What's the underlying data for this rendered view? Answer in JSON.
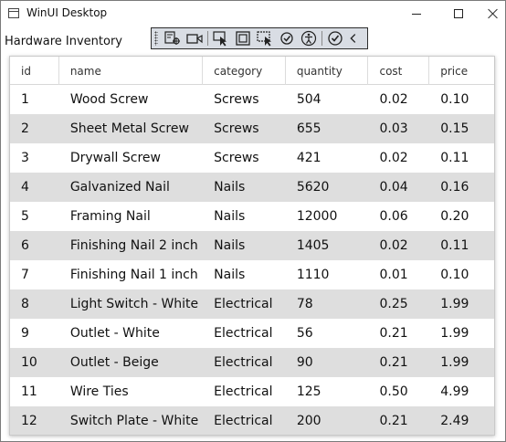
{
  "window": {
    "title": "WinUI Desktop"
  },
  "page": {
    "title": "Hardware Inventory"
  },
  "toolbar": {
    "tools": [
      "live-visual-tree-icon",
      "record-icon",
      "select-element-icon",
      "display-layout-adorners-icon",
      "track-focus-icon",
      "hot-reload-icon",
      "accessibility-icon",
      "check-icon",
      "collapse-icon"
    ]
  },
  "table": {
    "columns": [
      "id",
      "name",
      "category",
      "quantity",
      "cost",
      "price"
    ],
    "rows": [
      [
        "1",
        "Wood Screw",
        "Screws",
        "504",
        "0.02",
        "0.10"
      ],
      [
        "2",
        "Sheet Metal Screw",
        "Screws",
        "655",
        "0.03",
        "0.15"
      ],
      [
        "3",
        "Drywall Screw",
        "Screws",
        "421",
        "0.02",
        "0.11"
      ],
      [
        "4",
        "Galvanized Nail",
        "Nails",
        "5620",
        "0.04",
        "0.16"
      ],
      [
        "5",
        "Framing Nail",
        "Nails",
        "12000",
        "0.06",
        "0.20"
      ],
      [
        "6",
        "Finishing Nail 2 inch",
        "Nails",
        "1405",
        "0.02",
        "0.11"
      ],
      [
        "7",
        "Finishing Nail 1 inch",
        "Nails",
        "1110",
        "0.01",
        "0.10"
      ],
      [
        "8",
        "Light Switch - White",
        "Electrical",
        "78",
        "0.25",
        "1.99"
      ],
      [
        "9",
        "Outlet - White",
        "Electrical",
        "56",
        "0.21",
        "1.99"
      ],
      [
        "10",
        "Outlet - Beige",
        "Electrical",
        "90",
        "0.21",
        "1.99"
      ],
      [
        "11",
        "Wire Ties",
        "Electrical",
        "125",
        "0.50",
        "4.99"
      ],
      [
        "12",
        "Switch Plate - White",
        "Electrical",
        "200",
        "0.21",
        "2.49"
      ]
    ]
  }
}
